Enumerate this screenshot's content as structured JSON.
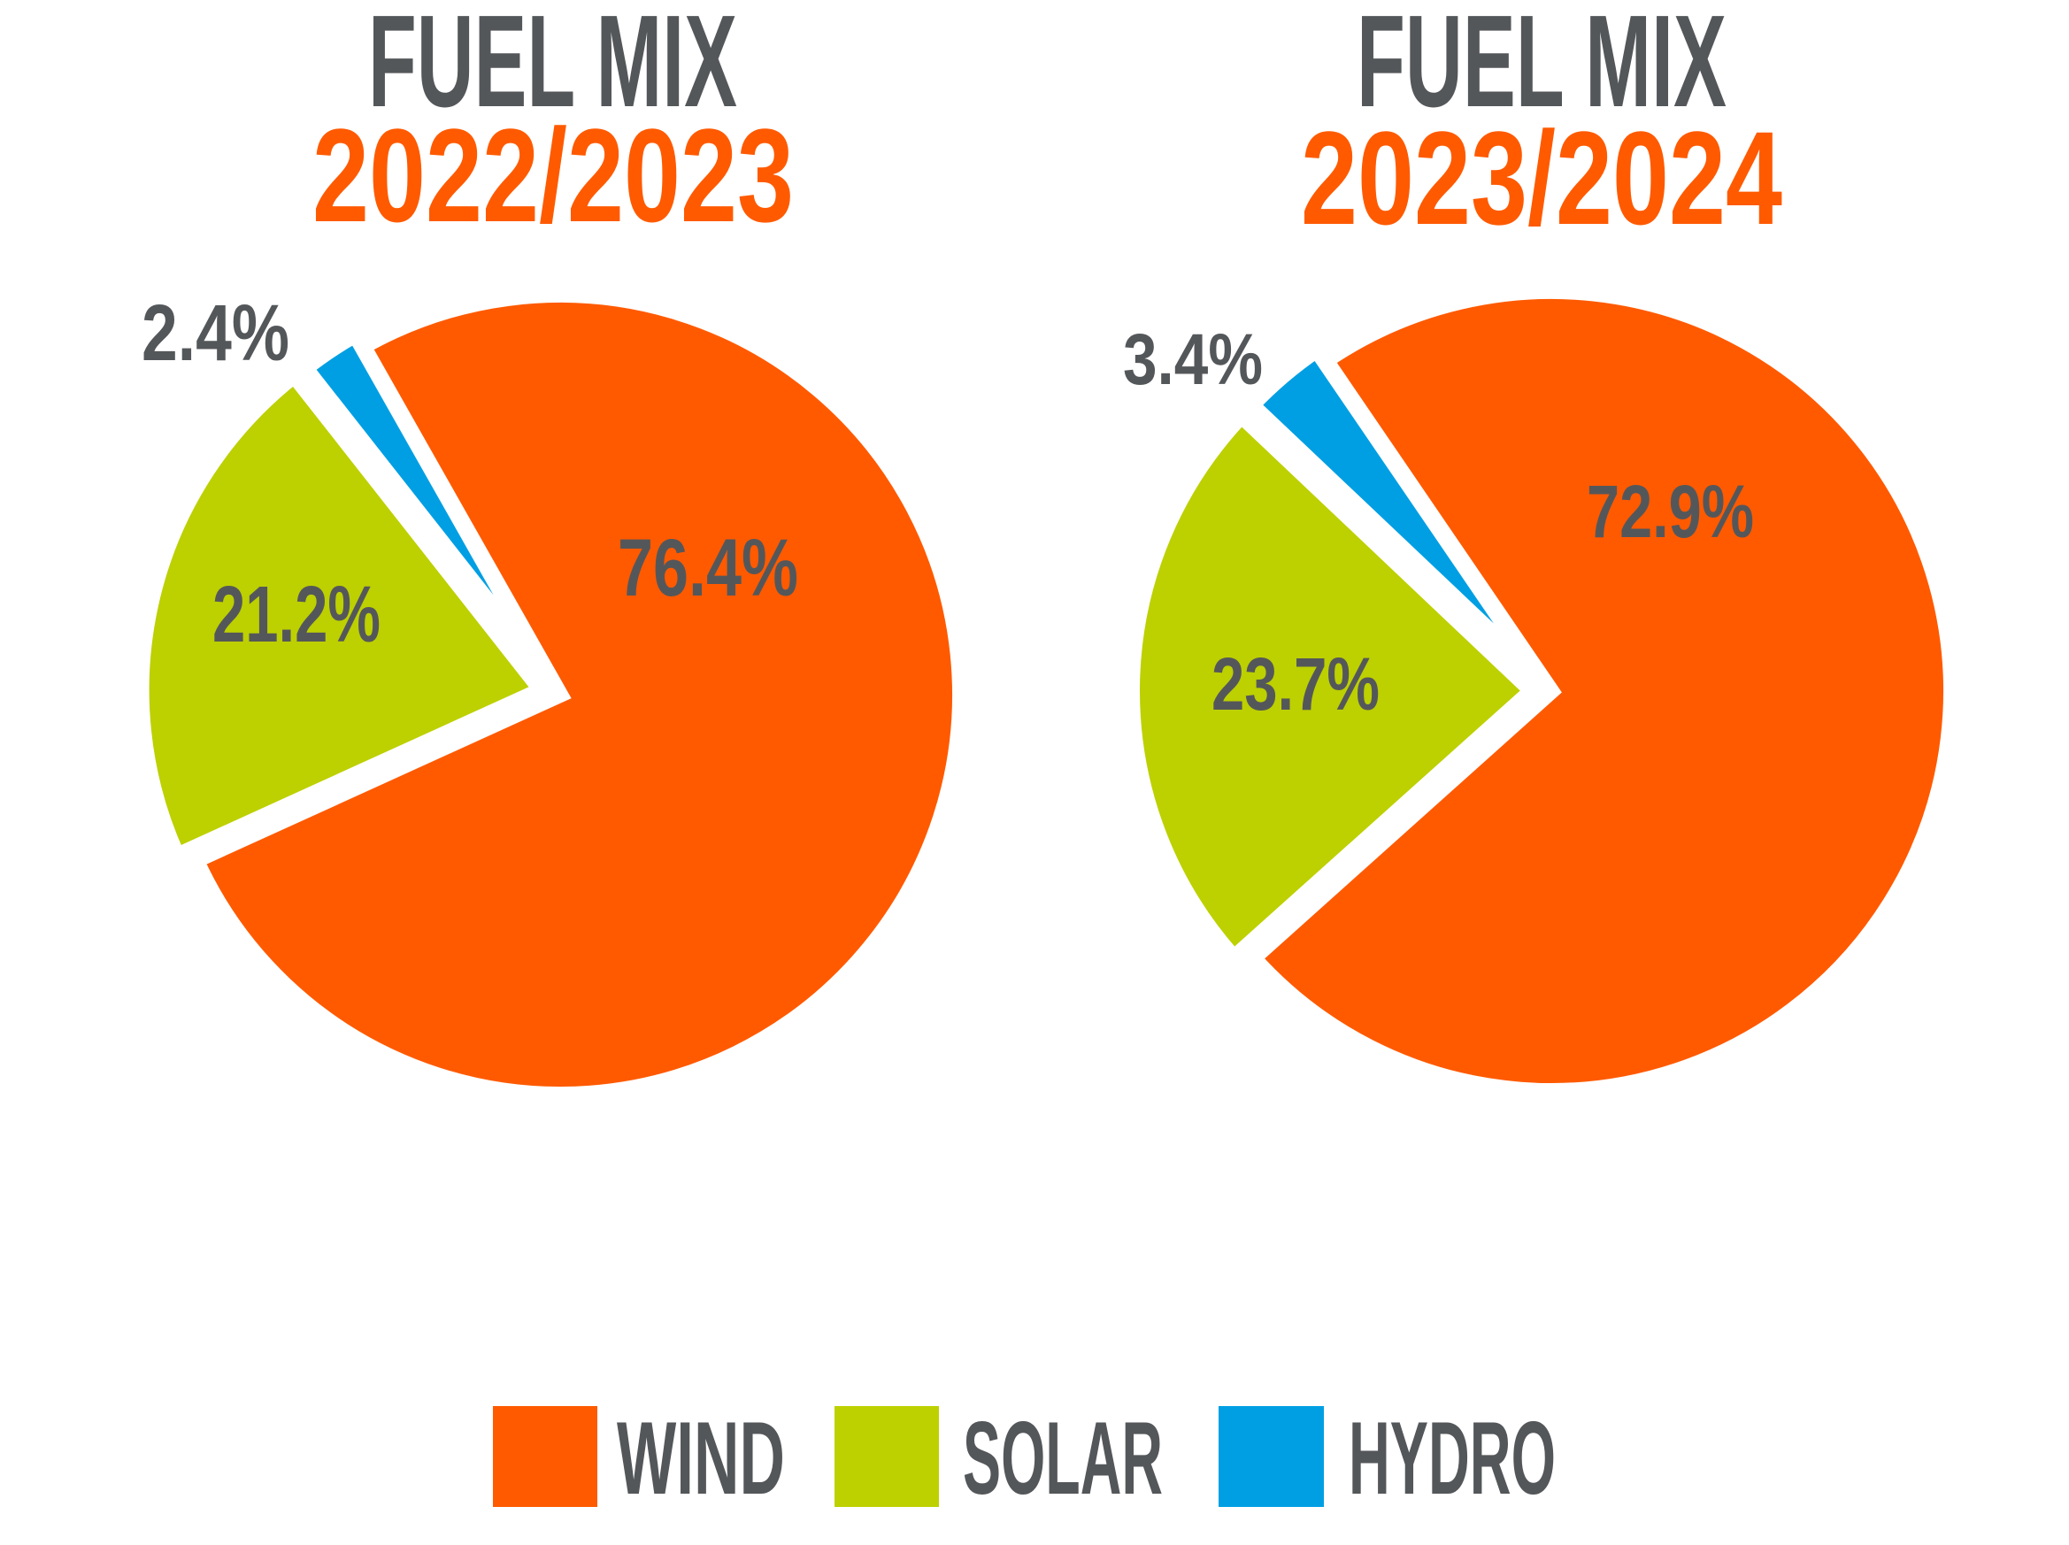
{
  "colors": {
    "wind": "#ff5a00",
    "solar": "#bdd000",
    "hydro": "#009fe3",
    "text": "#54575a",
    "year": "#ff5a00"
  },
  "chart_data": [
    {
      "type": "pie",
      "title": "FUEL MIX",
      "subtitle": "2022/2023",
      "categories": [
        "WIND",
        "SOLAR",
        "HYDRO"
      ],
      "values": [
        76.4,
        21.2,
        2.4
      ],
      "labels": [
        "76.4%",
        "21.2%",
        "2.4%"
      ],
      "unit": "%"
    },
    {
      "type": "pie",
      "title": "FUEL MIX",
      "subtitle": "2023/2024",
      "categories": [
        "WIND",
        "SOLAR",
        "HYDRO"
      ],
      "values": [
        72.9,
        23.7,
        3.4
      ],
      "labels": [
        "72.9%",
        "23.7%",
        "3.4%"
      ],
      "unit": "%"
    }
  ],
  "legend": {
    "placement": "bottom",
    "items": [
      {
        "label": "WIND",
        "color": "#ff5a00"
      },
      {
        "label": "SOLAR",
        "color": "#bdd000"
      },
      {
        "label": "HYDRO",
        "color": "#009fe3"
      }
    ]
  }
}
